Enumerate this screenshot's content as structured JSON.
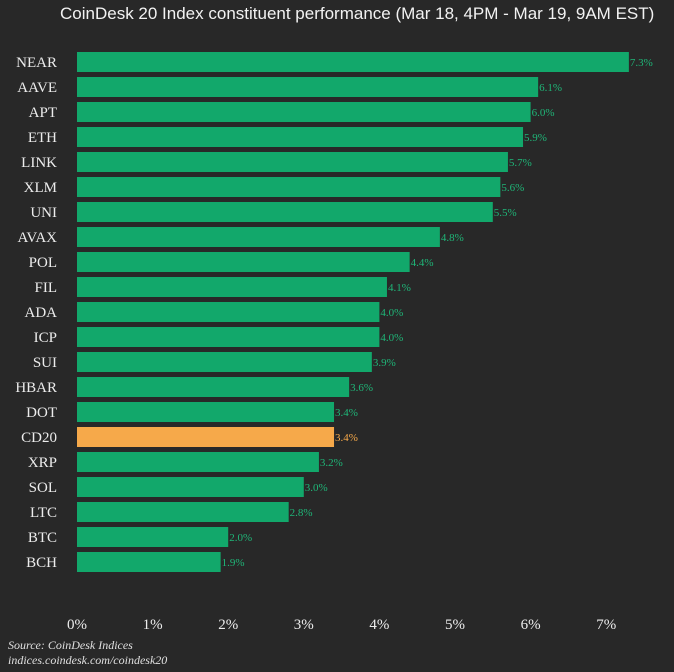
{
  "header": {
    "title": "CoinDesk 20 Index constituent performance (Mar 18, 4PM - Mar 19, 9AM EST)"
  },
  "footer": {
    "source": "Source: CoinDesk Indices",
    "url": "indices.coindesk.com/coindesk20"
  },
  "colors": {
    "bar": "#12a86b",
    "highlight_bar": "#f6a94a",
    "value_label": "#1fb678",
    "highlight_value_label": "#f6a94a",
    "background": "#282828"
  },
  "chart_data": {
    "type": "bar",
    "orientation": "horizontal",
    "title": "CoinDesk 20 Index constituent performance (Mar 18, 4PM - Mar 19, 9AM EST)",
    "xlabel": "",
    "ylabel": "",
    "xlim": [
      0,
      7.5
    ],
    "x_ticks": [
      0,
      1,
      2,
      3,
      4,
      5,
      6,
      7
    ],
    "x_tick_labels": [
      "0%",
      "1%",
      "2%",
      "3%",
      "4%",
      "5%",
      "6%",
      "7%"
    ],
    "grid": false,
    "highlight": "CD20",
    "categories": [
      "NEAR",
      "AAVE",
      "APT",
      "ETH",
      "LINK",
      "XLM",
      "UNI",
      "AVAX",
      "POL",
      "FIL",
      "ADA",
      "ICP",
      "SUI",
      "HBAR",
      "DOT",
      "CD20",
      "XRP",
      "SOL",
      "LTC",
      "BTC",
      "BCH"
    ],
    "values": [
      7.3,
      6.1,
      6.0,
      5.9,
      5.7,
      5.6,
      5.5,
      4.8,
      4.4,
      4.1,
      4.0,
      4.0,
      3.9,
      3.6,
      3.4,
      3.4,
      3.2,
      3.0,
      2.8,
      2.0,
      1.9
    ],
    "value_labels": [
      "7.3%",
      "6.1%",
      "6.0%",
      "5.9%",
      "5.7%",
      "5.6%",
      "5.5%",
      "4.8%",
      "4.4%",
      "4.1%",
      "4.0%",
      "4.0%",
      "3.9%",
      "3.6%",
      "3.4%",
      "3.4%",
      "3.2%",
      "3.0%",
      "2.8%",
      "2.0%",
      "1.9%"
    ]
  }
}
